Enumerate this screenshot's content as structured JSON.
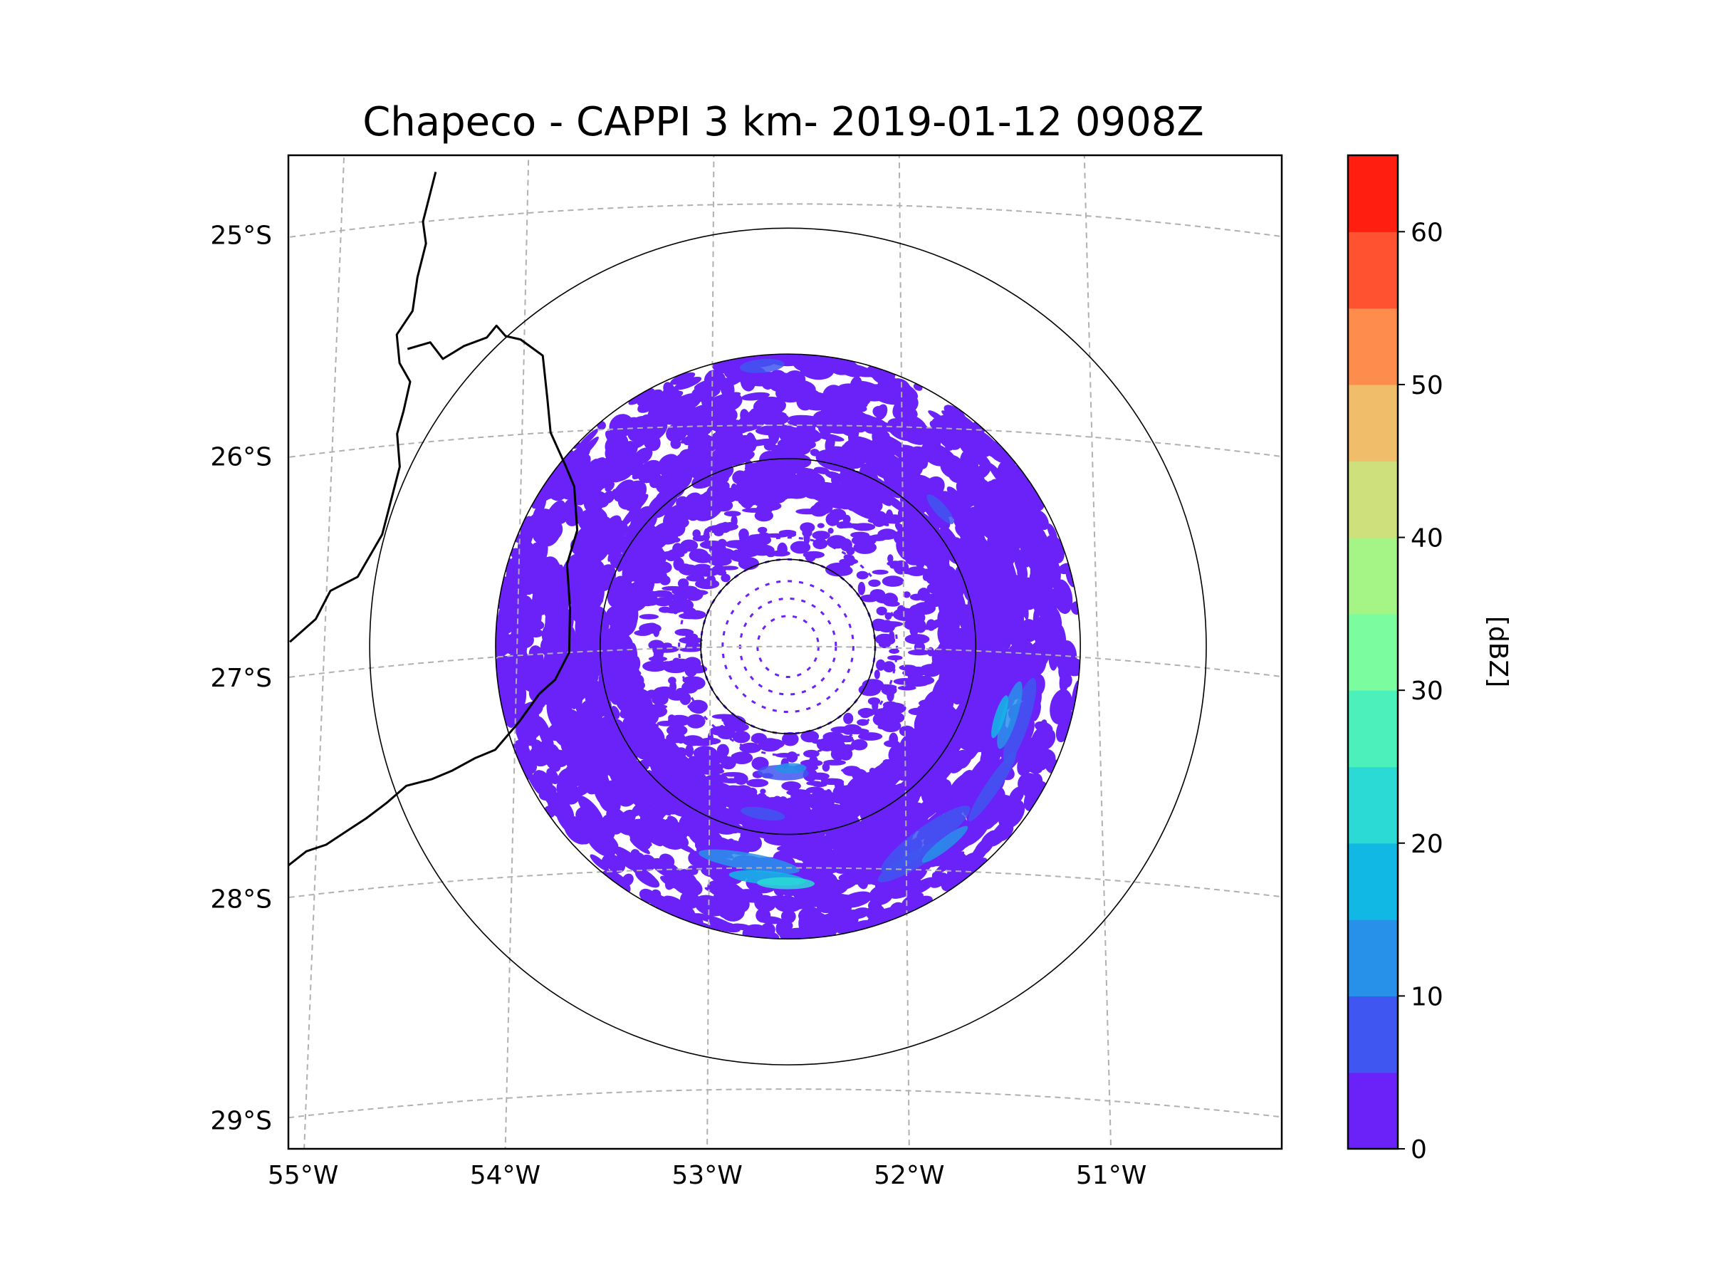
{
  "title": "Chapeco - CAPPI 3 km- 2019-01-12 0908Z",
  "map": {
    "extent": {
      "lon_min": -55.18,
      "lon_max": -50.05,
      "lat_max": -24.78,
      "lat_min": -29.27
    },
    "radar_center": {
      "lon": -52.6,
      "lat": -27.0
    },
    "range_rings_deg": [
      0.45,
      0.97,
      1.51,
      2.16
    ],
    "longitude_ticks": [
      {
        "value": -55,
        "label": "55°W"
      },
      {
        "value": -54,
        "label": "54°W"
      },
      {
        "value": -53,
        "label": "53°W"
      },
      {
        "value": -52,
        "label": "52°W"
      },
      {
        "value": -51,
        "label": "51°W"
      }
    ],
    "latitude_ticks": [
      {
        "value": -25,
        "label": "25°S"
      },
      {
        "value": -26,
        "label": "26°S"
      },
      {
        "value": -27,
        "label": "27°S"
      },
      {
        "value": -28,
        "label": "28°S"
      },
      {
        "value": -29,
        "label": "29°S"
      }
    ]
  },
  "colorbar": {
    "label": "[dBZ]",
    "levels": [
      0,
      5,
      10,
      15,
      20,
      25,
      30,
      35,
      40,
      45,
      50,
      55,
      60,
      65
    ],
    "colors": [
      "#6a22f9",
      "#3f56f0",
      "#2790e9",
      "#12b8e4",
      "#2bdad5",
      "#4cf0ba",
      "#7bfd9f",
      "#a4f486",
      "#cde07c",
      "#f0bd6a",
      "#fe8c4c",
      "#ff5230",
      "#ff1e10"
    ],
    "ticks": [
      {
        "value": 0,
        "label": "0"
      },
      {
        "value": 10,
        "label": "10"
      },
      {
        "value": 20,
        "label": "20"
      },
      {
        "value": 30,
        "label": "30"
      },
      {
        "value": 40,
        "label": "40"
      },
      {
        "value": 50,
        "label": "50"
      },
      {
        "value": 60,
        "label": "60"
      }
    ]
  },
  "colors": {
    "echo_base": "#6a22f9",
    "grid": "#b0b0b0",
    "border_line": "#000000"
  }
}
